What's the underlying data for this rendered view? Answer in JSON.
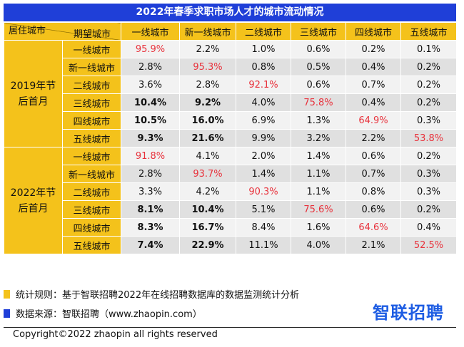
{
  "title": "2022年春季求职市场人才的城市流动情况",
  "header": {
    "corner_top_right": "期望城市",
    "corner_bottom_left": "居住城市",
    "columns": [
      "一线城市",
      "新一线城市",
      "二线城市",
      "三线城市",
      "四线城市",
      "五线城市"
    ]
  },
  "groups": [
    {
      "label": "2019年节后首月",
      "rows": [
        {
          "city": "一线城市",
          "values": [
            "95.9%",
            "2.2%",
            "1.0%",
            "0.6%",
            "0.2%",
            "0.1%"
          ],
          "bold": [
            false,
            false,
            false,
            false,
            false,
            false
          ],
          "red": [
            true,
            false,
            false,
            false,
            false,
            false
          ]
        },
        {
          "city": "新一线城市",
          "values": [
            "2.8%",
            "95.3%",
            "0.8%",
            "0.5%",
            "0.4%",
            "0.2%"
          ],
          "bold": [
            false,
            false,
            false,
            false,
            false,
            false
          ],
          "red": [
            false,
            true,
            false,
            false,
            false,
            false
          ]
        },
        {
          "city": "二线城市",
          "values": [
            "3.6%",
            "2.8%",
            "92.1%",
            "0.6%",
            "0.7%",
            "0.2%"
          ],
          "bold": [
            false,
            false,
            false,
            false,
            false,
            false
          ],
          "red": [
            false,
            false,
            true,
            false,
            false,
            false
          ]
        },
        {
          "city": "三线城市",
          "values": [
            "10.4%",
            "9.2%",
            "4.0%",
            "75.8%",
            "0.4%",
            "0.2%"
          ],
          "bold": [
            true,
            true,
            false,
            false,
            false,
            false
          ],
          "red": [
            false,
            false,
            false,
            true,
            false,
            false
          ]
        },
        {
          "city": "四线城市",
          "values": [
            "10.5%",
            "16.0%",
            "6.9%",
            "1.3%",
            "64.9%",
            "0.3%"
          ],
          "bold": [
            true,
            true,
            false,
            false,
            false,
            false
          ],
          "red": [
            false,
            false,
            false,
            false,
            true,
            false
          ]
        },
        {
          "city": "五线城市",
          "values": [
            "9.3%",
            "21.6%",
            "9.9%",
            "3.2%",
            "2.2%",
            "53.8%"
          ],
          "bold": [
            true,
            true,
            false,
            false,
            false,
            false
          ],
          "red": [
            false,
            false,
            false,
            false,
            false,
            true
          ]
        }
      ]
    },
    {
      "label": "2022年节后首月",
      "rows": [
        {
          "city": "一线城市",
          "values": [
            "91.8%",
            "4.1%",
            "2.0%",
            "1.4%",
            "0.6%",
            "0.2%"
          ],
          "bold": [
            false,
            false,
            false,
            false,
            false,
            false
          ],
          "red": [
            true,
            false,
            false,
            false,
            false,
            false
          ]
        },
        {
          "city": "新一线城市",
          "values": [
            "2.8%",
            "93.7%",
            "1.4%",
            "1.1%",
            "0.7%",
            "0.3%"
          ],
          "bold": [
            false,
            false,
            false,
            false,
            false,
            false
          ],
          "red": [
            false,
            true,
            false,
            false,
            false,
            false
          ]
        },
        {
          "city": "二线城市",
          "values": [
            "3.3%",
            "4.2%",
            "90.3%",
            "1.1%",
            "0.8%",
            "0.3%"
          ],
          "bold": [
            false,
            false,
            false,
            false,
            false,
            false
          ],
          "red": [
            false,
            false,
            true,
            false,
            false,
            false
          ]
        },
        {
          "city": "三线城市",
          "values": [
            "8.1%",
            "10.4%",
            "5.1%",
            "75.6%",
            "0.6%",
            "0.2%"
          ],
          "bold": [
            true,
            true,
            false,
            false,
            false,
            false
          ],
          "red": [
            false,
            false,
            false,
            true,
            false,
            false
          ]
        },
        {
          "city": "四线城市",
          "values": [
            "8.3%",
            "16.7%",
            "8.4%",
            "1.6%",
            "64.6%",
            "0.4%"
          ],
          "bold": [
            true,
            true,
            false,
            false,
            false,
            false
          ],
          "red": [
            false,
            false,
            false,
            false,
            true,
            false
          ]
        },
        {
          "city": "五线城市",
          "values": [
            "7.4%",
            "22.9%",
            "11.1%",
            "4.0%",
            "2.1%",
            "52.5%"
          ],
          "bold": [
            true,
            true,
            false,
            false,
            false,
            false
          ],
          "red": [
            false,
            false,
            false,
            false,
            false,
            true
          ]
        }
      ]
    }
  ],
  "notes": {
    "rule": "统计规则：基于智联招聘2022年在线招聘数据库的数据监测统计分析",
    "source": "数据来源：智联招聘（www.zhaopin.com）",
    "rule_color": "#f4c21b",
    "source_color": "#1f3fd8"
  },
  "logo": "智联招聘",
  "copyright": "Copyright©2022 zhaopin all rights reserved",
  "colors": {
    "title_bg": "#1f3fd8",
    "header_bg": "#f4c21b",
    "highlight": "#e8323c",
    "row_light": "#f2f2f2",
    "row_dark": "#e0e0e0"
  }
}
